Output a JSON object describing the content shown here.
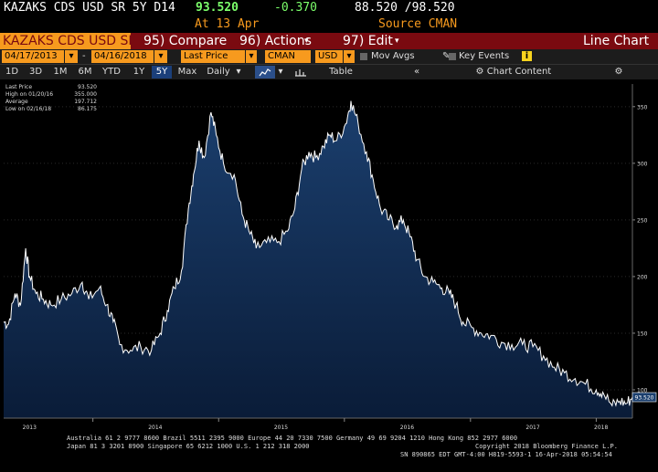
{
  "header": {
    "ticker": "KAZAKS CDS USD SR 5Y D14",
    "last": "93.520",
    "change": "-0.370",
    "bid_ask": "88.520 /98.520",
    "at": "At 13 Apr",
    "source": "Source CMAN"
  },
  "menubar": {
    "security": "KAZAKS CDS USD SR",
    "compare": "95) Compare",
    "actions": "96) Actions",
    "edit": "97) Edit",
    "chart_type": "Line Chart"
  },
  "toolbar": {
    "start_date": "04/17/2013",
    "end_date": "04/16/2018",
    "field": "Last Price",
    "source": "CMAN",
    "currency": "USD",
    "mov_avgs": "Mov Avgs",
    "key_events": "Key Events"
  },
  "periods": [
    "1D",
    "3D",
    "1M",
    "6M",
    "YTD",
    "1Y",
    "5Y",
    "Max"
  ],
  "selected_period": "5Y",
  "toolbar2": {
    "interval": "Daily",
    "table": "Table",
    "chart_content": "Chart Content"
  },
  "legend": {
    "rows": [
      {
        "label": "Last Price",
        "value": "93.520"
      },
      {
        "label": "High on 01/20/16",
        "value": "355.000"
      },
      {
        "label": "Average",
        "value": "197.712"
      },
      {
        "label": "Low on 02/16/18",
        "value": "86.175"
      }
    ]
  },
  "last_price_tag": "93.520",
  "footer": {
    "line1": "Australia 61 2 9777 8600 Brazil 5511 2395 9000 Europe 44 20 7330 7500 Germany 49 69 9204 1210 Hong Kong 852 2977 6000",
    "line2": "Japan 81 3 3201 8900         Singapore 65 6212 1000         U.S. 1 212 318 2000",
    "copyright": "Copyright 2018 Bloomberg Finance L.P.",
    "sn": "SN 890865 EDT  GMT-4:00 H819-5593-1 16-Apr-2018 05:54:54"
  },
  "colors": {
    "accent": "#f79a1e",
    "menubar": "#7a0a10",
    "area_top": "#1b3f6e",
    "area_bottom": "#0a1c38",
    "line": "#ffffff"
  },
  "chart_data": {
    "type": "area",
    "title": "",
    "ylim": [
      75,
      370
    ],
    "y_ticks": [
      100,
      150,
      200,
      250,
      300,
      350
    ],
    "x_tick_labels": [
      "2013",
      "2014",
      "2015",
      "2016",
      "2017",
      "2018"
    ],
    "x_tick_dates": [
      "2013-07-01",
      "2014-07-01",
      "2015-07-01",
      "2016-07-01",
      "2017-07-01",
      "2018-01-15"
    ],
    "x_range": [
      "2013-04-17",
      "2018-04-16"
    ],
    "series": [
      {
        "values": [
          [
            "2013-04-17",
            160
          ],
          [
            "2013-05-01",
            158
          ],
          [
            "2013-05-20",
            185
          ],
          [
            "2013-06-05",
            175
          ],
          [
            "2013-06-20",
            225
          ],
          [
            "2013-07-01",
            200
          ],
          [
            "2013-07-20",
            185
          ],
          [
            "2013-08-10",
            180
          ],
          [
            "2013-09-01",
            175
          ],
          [
            "2013-10-01",
            180
          ],
          [
            "2013-11-01",
            185
          ],
          [
            "2013-12-01",
            195
          ],
          [
            "2013-12-20",
            180
          ],
          [
            "2014-01-20",
            190
          ],
          [
            "2014-02-10",
            175
          ],
          [
            "2014-03-01",
            160
          ],
          [
            "2014-03-20",
            140
          ],
          [
            "2014-04-20",
            135
          ],
          [
            "2014-05-20",
            138
          ],
          [
            "2014-06-20",
            135
          ],
          [
            "2014-07-15",
            150
          ],
          [
            "2014-08-05",
            170
          ],
          [
            "2014-08-25",
            190
          ],
          [
            "2014-09-15",
            205
          ],
          [
            "2014-10-05",
            260
          ],
          [
            "2014-10-20",
            290
          ],
          [
            "2014-11-05",
            320
          ],
          [
            "2014-11-20",
            305
          ],
          [
            "2014-12-10",
            345
          ],
          [
            "2014-12-25",
            325
          ],
          [
            "2015-01-15",
            300
          ],
          [
            "2015-02-15",
            290
          ],
          [
            "2015-03-10",
            255
          ],
          [
            "2015-03-30",
            240
          ],
          [
            "2015-04-20",
            225
          ],
          [
            "2015-05-20",
            230
          ],
          [
            "2015-06-20",
            230
          ],
          [
            "2015-07-20",
            240
          ],
          [
            "2015-08-10",
            260
          ],
          [
            "2015-08-30",
            295
          ],
          [
            "2015-09-20",
            310
          ],
          [
            "2015-10-10",
            305
          ],
          [
            "2015-11-01",
            315
          ],
          [
            "2015-11-20",
            325
          ],
          [
            "2015-12-10",
            320
          ],
          [
            "2016-01-05",
            335
          ],
          [
            "2016-01-20",
            355
          ],
          [
            "2016-02-10",
            335
          ],
          [
            "2016-03-05",
            310
          ],
          [
            "2016-03-25",
            285
          ],
          [
            "2016-04-15",
            260
          ],
          [
            "2016-05-10",
            250
          ],
          [
            "2016-06-01",
            245
          ],
          [
            "2016-06-20",
            250
          ],
          [
            "2016-07-10",
            235
          ],
          [
            "2016-07-30",
            215
          ],
          [
            "2016-08-20",
            200
          ],
          [
            "2016-09-15",
            195
          ],
          [
            "2016-10-10",
            190
          ],
          [
            "2016-11-01",
            185
          ],
          [
            "2016-11-20",
            175
          ],
          [
            "2016-12-10",
            160
          ],
          [
            "2017-01-05",
            155
          ],
          [
            "2017-02-01",
            150
          ],
          [
            "2017-03-01",
            148
          ],
          [
            "2017-04-01",
            142
          ],
          [
            "2017-05-01",
            140
          ],
          [
            "2017-06-01",
            140
          ],
          [
            "2017-07-01",
            138
          ],
          [
            "2017-08-01",
            130
          ],
          [
            "2017-09-01",
            120
          ],
          [
            "2017-10-01",
            115
          ],
          [
            "2017-11-01",
            110
          ],
          [
            "2017-12-01",
            105
          ],
          [
            "2018-01-01",
            100
          ],
          [
            "2018-01-20",
            98
          ],
          [
            "2018-02-16",
            86
          ],
          [
            "2018-03-10",
            90
          ],
          [
            "2018-03-30",
            88
          ],
          [
            "2018-04-16",
            93.52
          ]
        ]
      }
    ]
  }
}
